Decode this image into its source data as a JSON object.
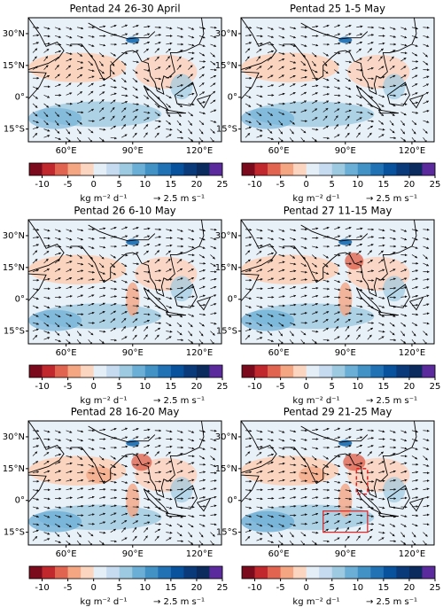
{
  "panels": [
    {
      "title": "Pentad 24 26-30 April"
    },
    {
      "title": "Pentad 25 1-5 May"
    },
    {
      "title": "Pentad 26 6-10 May"
    },
    {
      "title": "Pentad 27 11-15 May"
    },
    {
      "title": "Pentad 28 16-20 May"
    },
    {
      "title": "Pentad 29 21-25 May"
    }
  ],
  "map": {
    "xlim": [
      43,
      130
    ],
    "ylim": [
      -21,
      37.5
    ],
    "xticks": [
      {
        "value": 60,
        "label": "60°E"
      },
      {
        "value": 90,
        "label": "90°E"
      },
      {
        "value": 120,
        "label": "120°E"
      }
    ],
    "yticks": [
      {
        "value": 30,
        "label": "30°N"
      },
      {
        "value": 15,
        "label": "15°N"
      },
      {
        "value": 0,
        "label": "0°"
      },
      {
        "value": -15,
        "label": "15°S"
      }
    ]
  },
  "colorbar": {
    "lim": [
      -12.5,
      25
    ],
    "ticks": [
      -10,
      -5,
      0,
      5,
      10,
      15,
      20,
      25
    ],
    "colors": [
      "#7a0a1c",
      "#c0282e",
      "#e0644f",
      "#f4a582",
      "#fcd5c0",
      "#e4eef7",
      "#c6dbef",
      "#9ecae1",
      "#6baed6",
      "#4292c6",
      "#2171b5",
      "#08519c",
      "#0a3a7a",
      "#0b2a5e",
      "#5b2a9c"
    ],
    "label": "kg m⁻² d⁻¹",
    "vector_label": "→ 2.5 m s⁻¹"
  }
}
